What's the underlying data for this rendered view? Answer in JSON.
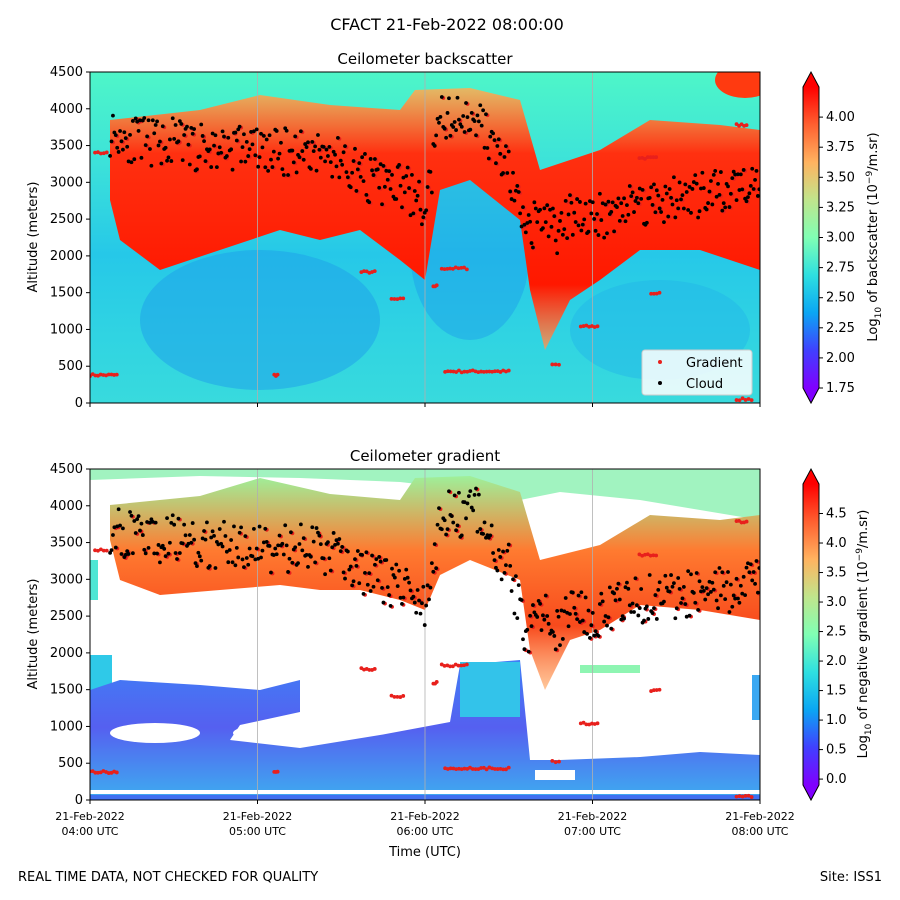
{
  "figure_title": "CFACT 21-Feb-2022 08:00:00",
  "footer_left": "REAL TIME DATA, NOT CHECKED FOR QUALITY",
  "footer_right": "Site: ISS1",
  "legend": {
    "gradient_label": "Gradient",
    "cloud_label": "Cloud"
  },
  "colors": {
    "gradient_marker": "#e8201c",
    "cloud_marker": "#000000",
    "grid": "#b0b0b0"
  },
  "chart_data": [
    {
      "type": "heatmap",
      "title": "Ceilometer backscatter",
      "ylabel": "Altitude (meters)",
      "ylim": [
        0,
        4500
      ],
      "yticks": [
        "0",
        "500",
        "1000",
        "1500",
        "2000",
        "2500",
        "3000",
        "3500",
        "4000",
        "4500"
      ],
      "xlim_hours_utc": [
        4,
        8
      ],
      "colorbar": {
        "label": "Log10 of backscatter (10^-9/m.sr)",
        "range": [
          1.75,
          4.25
        ],
        "ticks": [
          "1.75",
          "2.00",
          "2.25",
          "2.50",
          "2.75",
          "3.00",
          "3.25",
          "3.50",
          "3.75",
          "4.00"
        ],
        "colormap": "rainbow"
      },
      "series": [
        {
          "name": "Gradient"
        },
        {
          "name": "Cloud"
        }
      ]
    },
    {
      "type": "heatmap",
      "title": "Ceilometer gradient",
      "ylabel": "Altitude (meters)",
      "xlabel": "Time (UTC)",
      "ylim": [
        0,
        4500
      ],
      "yticks": [
        "0",
        "500",
        "1000",
        "1500",
        "2000",
        "2500",
        "3000",
        "3500",
        "4000",
        "4500"
      ],
      "xlim_hours_utc": [
        4,
        8
      ],
      "xtick_dates": [
        "21-Feb-2022",
        "21-Feb-2022",
        "21-Feb-2022",
        "21-Feb-2022",
        "21-Feb-2022"
      ],
      "xtick_times": [
        "04:00 UTC",
        "05:00 UTC",
        "06:00 UTC",
        "07:00 UTC",
        "08:00 UTC"
      ],
      "colorbar": {
        "label": "Log10 of negative gradient (10^-9/m.sr)",
        "range": [
          -0.1,
          5.0
        ],
        "ticks": [
          "0.0",
          "0.5",
          "1.0",
          "1.5",
          "2.0",
          "2.5",
          "3.0",
          "3.5",
          "4.0",
          "4.5"
        ],
        "colormap": "rainbow"
      },
      "series": [
        {
          "name": "Gradient"
        },
        {
          "name": "Cloud"
        }
      ]
    }
  ],
  "cloud_base_profile": {
    "time_hours": [
      4.1,
      4.3,
      4.5,
      4.7,
      4.9,
      5.1,
      5.3,
      5.5,
      5.7,
      5.9,
      6.0,
      6.1,
      6.2,
      6.3,
      6.4,
      6.5,
      6.6,
      6.7,
      6.8,
      6.9,
      7.0,
      7.2,
      7.4,
      7.6,
      7.8,
      7.95
    ],
    "altitude_m": [
      3700,
      3550,
      3550,
      3450,
      3500,
      3400,
      3450,
      3300,
      3000,
      2900,
      2600,
      3900,
      3850,
      3950,
      3500,
      3150,
      2250,
      2550,
      2300,
      2650,
      2500,
      2700,
      2750,
      2800,
      2850,
      3100
    ]
  },
  "gradient_segments": [
    {
      "t": [
        4.0,
        4.16
      ],
      "alt": 380
    },
    {
      "t": [
        4.03,
        4.1
      ],
      "alt": 3400
    },
    {
      "t": [
        5.1,
        5.12
      ],
      "alt": 380
    },
    {
      "t": [
        5.62,
        5.7
      ],
      "alt": 1780
    },
    {
      "t": [
        5.8,
        5.87
      ],
      "alt": 1410
    },
    {
      "t": [
        6.05,
        6.07
      ],
      "alt": 1590
    },
    {
      "t": [
        6.1,
        6.25
      ],
      "alt": 1830
    },
    {
      "t": [
        6.12,
        6.5
      ],
      "alt": 430
    },
    {
      "t": [
        6.76,
        6.8
      ],
      "alt": 520
    },
    {
      "t": [
        6.93,
        7.03
      ],
      "alt": 1040
    },
    {
      "t": [
        7.35,
        7.4
      ],
      "alt": 1490
    },
    {
      "t": [
        7.86,
        7.92
      ],
      "alt": 3780
    },
    {
      "t": [
        7.86,
        7.95
      ],
      "alt": 50
    },
    {
      "t": [
        7.28,
        7.38
      ],
      "alt": 3330
    }
  ]
}
